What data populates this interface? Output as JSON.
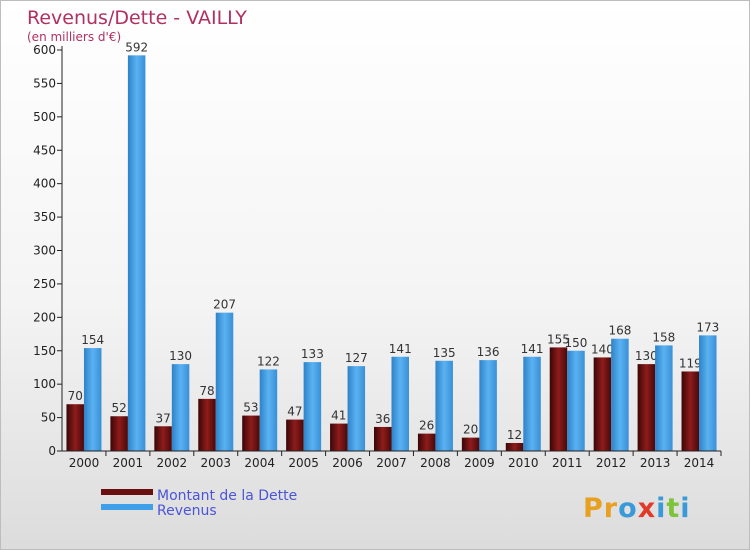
{
  "chart_data": {
    "type": "bar",
    "title": "Revenus/Dette - VAILLY",
    "subtitle": "(en milliers d'€)",
    "categories": [
      "2000",
      "2001",
      "2002",
      "2003",
      "2004",
      "2005",
      "2006",
      "2007",
      "2008",
      "2009",
      "2010",
      "2011",
      "2012",
      "2013",
      "2014"
    ],
    "series": [
      {
        "name": "Montant de la Dette",
        "color": "#7a1416",
        "values": [
          70,
          52,
          37,
          78,
          53,
          47,
          41,
          36,
          26,
          20,
          12,
          155,
          140,
          130,
          119
        ]
      },
      {
        "name": "Revenus",
        "color": "#3f9fe8",
        "values": [
          154,
          592,
          130,
          207,
          122,
          133,
          127,
          141,
          135,
          136,
          141,
          150,
          168,
          158,
          173
        ]
      }
    ],
    "ylim": [
      0,
      600
    ],
    "yticks": [
      0,
      50,
      100,
      150,
      200,
      250,
      300,
      350,
      400,
      450,
      500,
      550,
      600
    ],
    "grid": false,
    "legend": "bottom-left"
  },
  "logo": {
    "text": "Proxiti"
  }
}
